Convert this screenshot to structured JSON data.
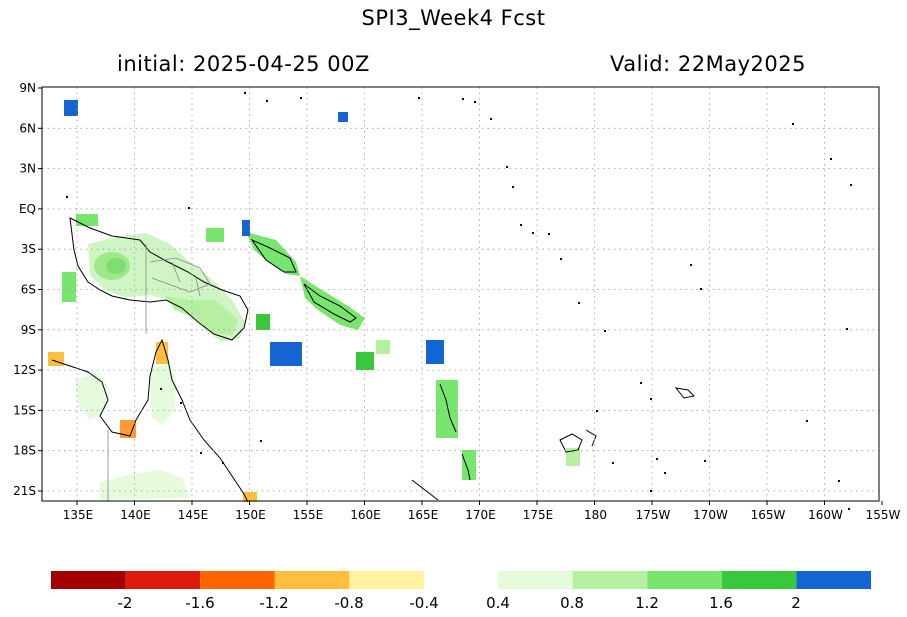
{
  "title": "SPI3_Week4   Fcst",
  "initial": "initial: 2025-04-25  00Z",
  "valid": "Valid: 22May2025",
  "lat_labels": [
    "9N",
    "6N",
    "3N",
    "EQ",
    "3S",
    "6S",
    "9S",
    "12S",
    "15S",
    "18S",
    "21S"
  ],
  "lon_labels": [
    "135E",
    "140E",
    "145E",
    "150E",
    "155E",
    "160E",
    "165E",
    "170E",
    "175E",
    "180",
    "175W",
    "170W",
    "165W",
    "160W",
    "155W"
  ],
  "colorbar": {
    "negative_colors": [
      "#a50000",
      "#e01a0a",
      "#ff6400",
      "#ffbe3c",
      "#fff5a0"
    ],
    "positive_colors": [
      "#e6fadc",
      "#b4f0a0",
      "#78e66e",
      "#37c83c",
      "#1464d2"
    ],
    "labels": [
      "-2",
      "-1.6",
      "-1.2",
      "-0.8",
      "-0.4",
      "0.4",
      "0.8",
      "1.2",
      "1.6",
      "2"
    ]
  },
  "legend_ranges": {
    "negative": "-2 to -0.4",
    "positive": "0.4 to 2"
  }
}
